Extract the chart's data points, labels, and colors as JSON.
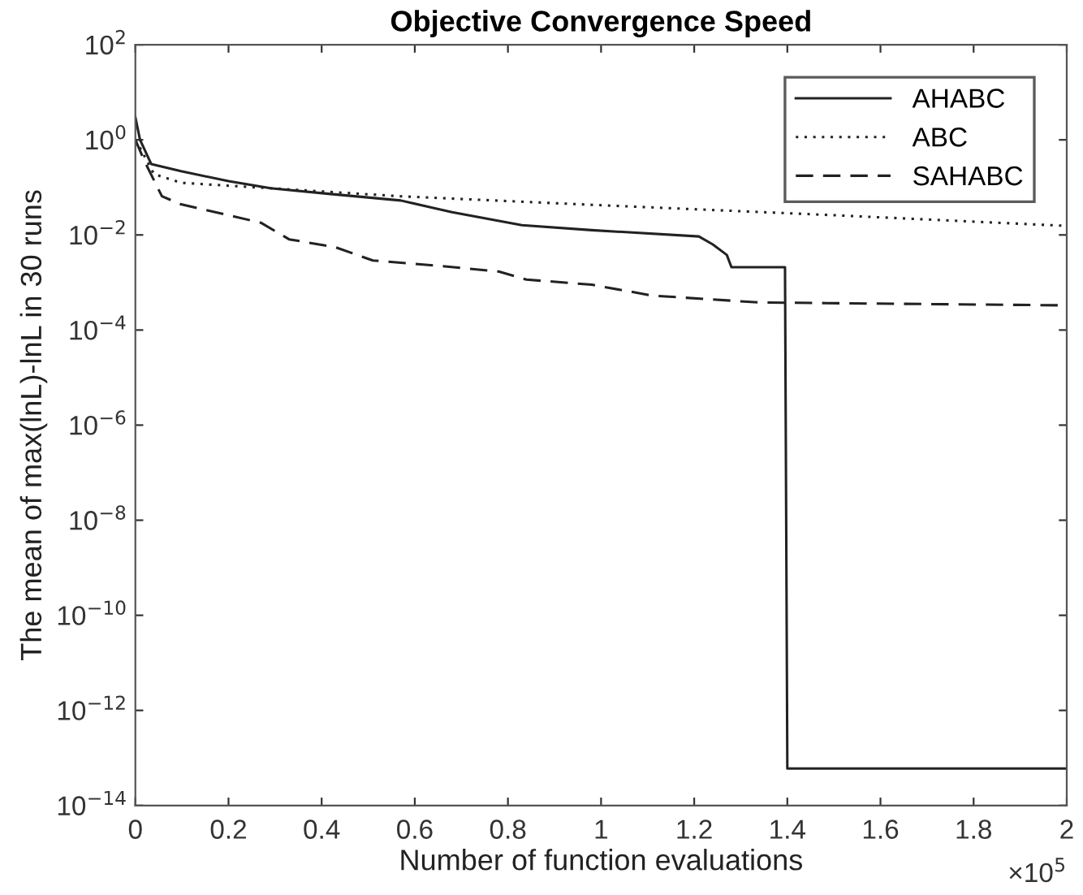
{
  "chart_data": {
    "type": "line",
    "title": "Objective Convergence Speed",
    "xlabel": "Number of function evaluations",
    "ylabel": "The mean of max(lnL)-lnL in 30 runs",
    "log": "y",
    "grid": false,
    "legend": "top right",
    "marker": "none",
    "xlim": [
      0,
      2
    ],
    "ylim": [
      1e-14,
      100
    ],
    "xticks": [
      0,
      0.2,
      0.4,
      0.6,
      0.8,
      1,
      1.2,
      1.4,
      1.6,
      1.8,
      2
    ],
    "yticks": [
      {
        "value": 1e-14,
        "label": "10$^{−14}$"
      },
      {
        "value": 1e-12,
        "label": "10$^{−12}$"
      },
      {
        "value": 1e-10,
        "label": "10$^{−10}$"
      },
      {
        "value": 1e-08,
        "label": "10$^{−8}$"
      },
      {
        "value": 1e-06,
        "label": "10$^{−6}$"
      },
      {
        "value": 0.0001,
        "label": "10$^{−4}$"
      },
      {
        "value": 0.01,
        "label": "10$^{−2}$"
      },
      {
        "value": 1,
        "label": "10$^{0}$"
      },
      {
        "value": 100,
        "label": "10$^{2}$"
      }
    ],
    "annotations": [
      "×10$^{5}$"
    ],
    "series": [
      {
        "name": "AHABC",
        "color": "#222222",
        "line_style": "solid",
        "x": [
          0,
          0.01,
          0.034,
          0.098,
          0.2,
          0.29,
          0.41,
          0.57,
          0.68,
          0.83,
          0.98,
          1.21,
          1.24,
          1.27,
          1.28,
          1.395,
          1.4,
          2
        ],
        "values": [
          3,
          1,
          0.31,
          0.22,
          0.135,
          0.096,
          0.074,
          0.053,
          0.03,
          0.016,
          0.0126,
          0.0093,
          0.0063,
          0.0038,
          0.0021,
          0.0021,
          6e-14,
          6e-14
        ]
      },
      {
        "name": "ABC",
        "color": "#222222",
        "line_style": "dotted",
        "x": [
          0,
          0.01,
          0.04,
          0.098,
          0.29,
          0.57,
          0.98,
          1.5,
          2
        ],
        "values": [
          1,
          0.68,
          0.19,
          0.125,
          0.096,
          0.065,
          0.043,
          0.026,
          0.0155
        ]
      },
      {
        "name": "SAHABC",
        "color": "#222222",
        "line_style": "dashed",
        "x": [
          0,
          0.02,
          0.057,
          0.098,
          0.2,
          0.27,
          0.33,
          0.43,
          0.51,
          0.66,
          0.78,
          0.84,
          0.98,
          1.11,
          1.34,
          2
        ],
        "values": [
          1,
          0.35,
          0.065,
          0.044,
          0.026,
          0.018,
          0.0081,
          0.0055,
          0.0029,
          0.0022,
          0.0017,
          0.00115,
          0.0009,
          0.00053,
          0.00038,
          0.00033
        ]
      }
    ]
  }
}
